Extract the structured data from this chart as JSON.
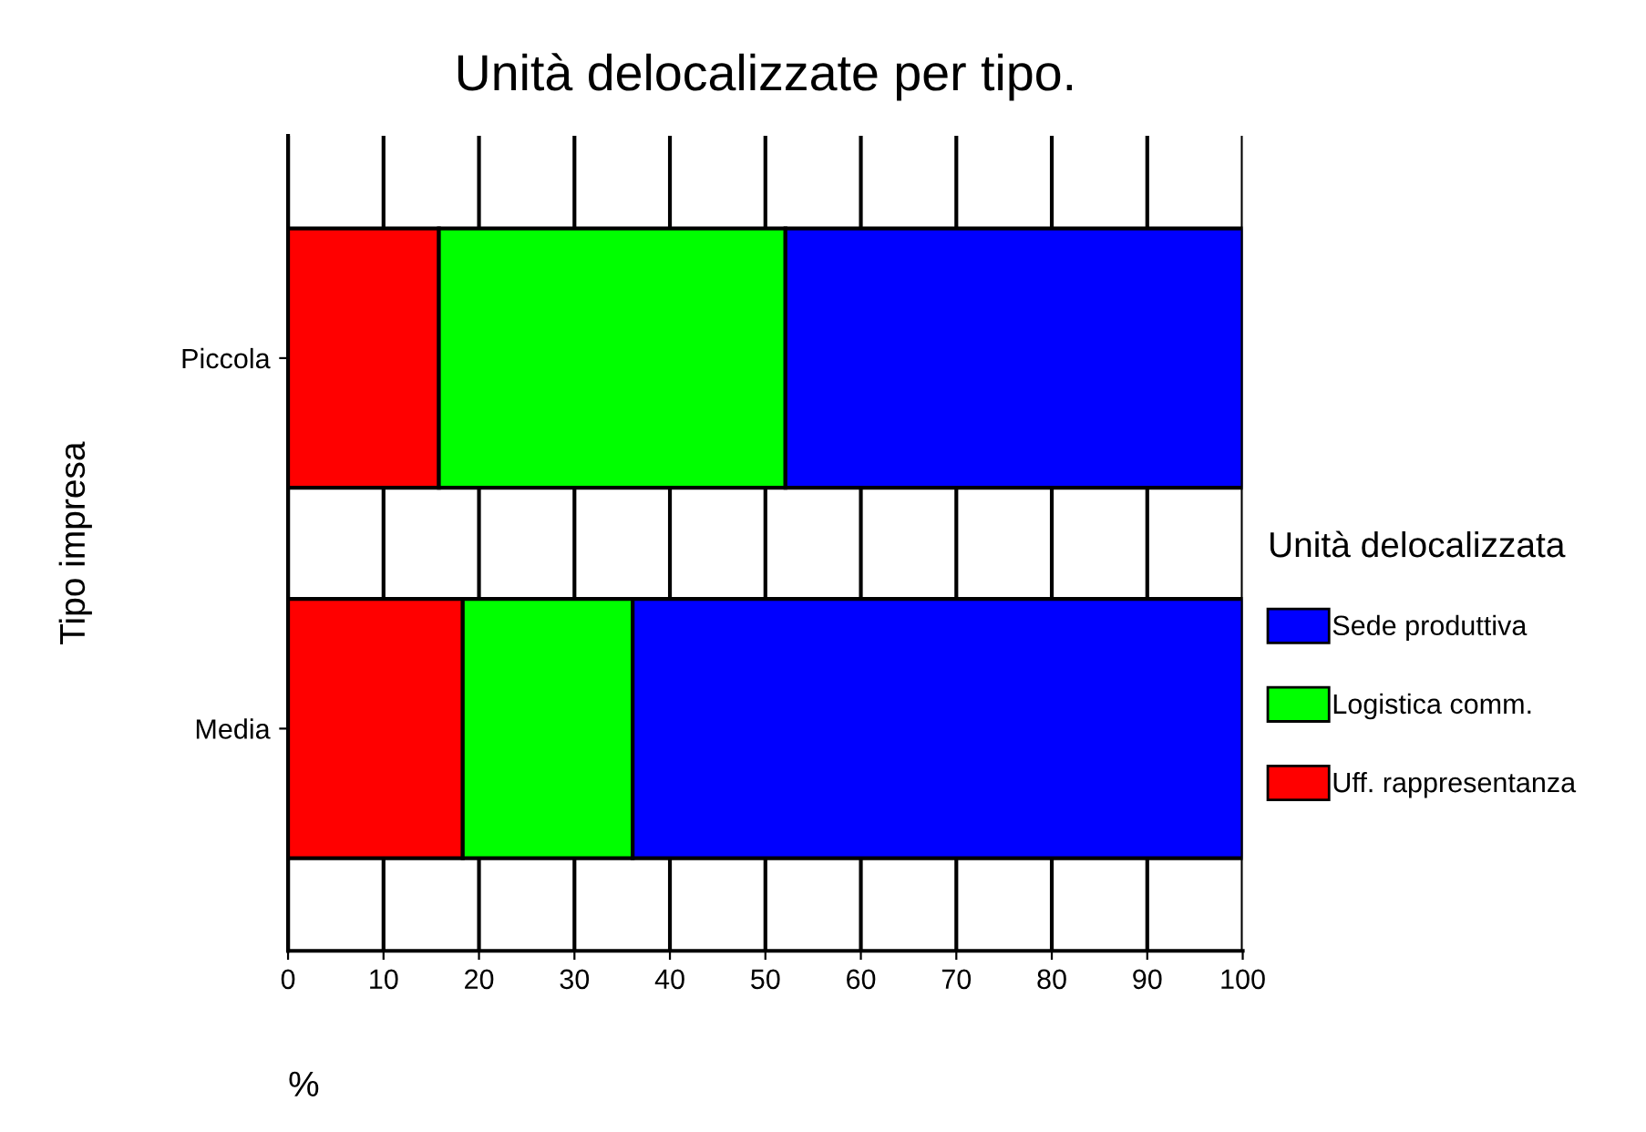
{
  "chart_data": {
    "type": "bar",
    "orientation": "horizontal",
    "stacked": true,
    "title": "Unità delocalizzate per tipo.",
    "xlabel": "%",
    "ylabel": "Tipo impresa",
    "legend_title": "Unità delocalizzata",
    "categories": [
      "Piccola",
      "Media"
    ],
    "series": [
      {
        "name": "Uff. rappresentanza",
        "color": "#ff0000",
        "values": [
          15.8,
          18.3
        ]
      },
      {
        "name": "Logistica comm.",
        "color": "#00ff00",
        "values": [
          36.3,
          17.8
        ]
      },
      {
        "name": "Sede produttiva",
        "color": "#0000ff",
        "values": [
          47.9,
          63.9
        ]
      }
    ],
    "xlim": [
      0,
      100
    ],
    "xticks": [
      0,
      10,
      20,
      30,
      40,
      50,
      60,
      70,
      80,
      90,
      100
    ],
    "grid": "x",
    "legend": "right"
  }
}
